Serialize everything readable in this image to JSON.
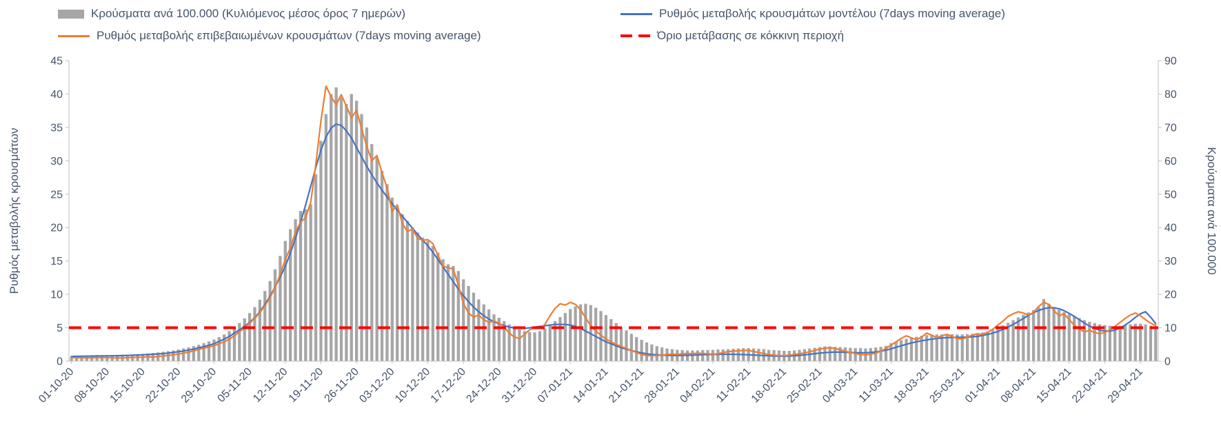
{
  "legend": {
    "items": [
      {
        "label": "Κρούσματα ανά 100.000 (Κυλιόμενος μέσος όρος 7 ημερών)",
        "type": "bar",
        "color": "#a6a6a6"
      },
      {
        "label": "Ρυθμός μεταβολής κρουσμάτων μοντέλου (7days moving average)",
        "type": "line",
        "color": "#4472c4"
      },
      {
        "label": "Ρυθμός μεταβολής επιβεβαιωμένων κρουσμάτων (7days moving average)",
        "type": "line",
        "color": "#ed7d31"
      },
      {
        "label": "Όριο μετάβασης σε κόκκινη περιοχή",
        "type": "dashed",
        "color": "#ff0000"
      }
    ]
  },
  "chart_data": {
    "type": "bar",
    "subtype": "combo-bar-line-daily",
    "grid": false,
    "legend_position": "top",
    "left_axis": {
      "title": "Ρυθμός μεταβολής κρουσμάτων",
      "min": 0,
      "max": 45,
      "ticks": [
        0,
        5,
        10,
        15,
        20,
        25,
        30,
        35,
        40,
        45
      ]
    },
    "right_axis": {
      "title": "Κρούσματα ανά 100.000",
      "min": 0,
      "max": 90,
      "ticks": [
        0,
        10,
        20,
        30,
        40,
        50,
        60,
        70,
        80,
        90
      ]
    },
    "threshold": {
      "value": 5,
      "axis": "left",
      "color": "#ff0000",
      "label": "Όριο μετάβασης σε κόκκινη περιοχή"
    },
    "x_tick_labels": [
      "01-10-20",
      "08-10-20",
      "15-10-20",
      "22-10-20",
      "29-10-20",
      "05-11-20",
      "12-11-20",
      "19-11-20",
      "26-11-20",
      "03-12-20",
      "10-12-20",
      "17-12-20",
      "24-12-20",
      "31-12-20",
      "07-01-21",
      "14-01-21",
      "21-01-21",
      "28-01-21",
      "04-02-21",
      "11-02-21",
      "18-02-21",
      "25-02-21",
      "04-03-21",
      "11-03-21",
      "18-03-21",
      "25-03-21",
      "01-04-21",
      "08-04-21",
      "15-04-21",
      "22-04-21",
      "29-04-21"
    ],
    "x_tick_step_days": 7,
    "series": [
      {
        "name": "Κρούσματα ανά 100.000 (Κυλιόμενος μέσος όρος 7 ημερών)",
        "type": "bar",
        "axis": "right",
        "color": "#a6a6a6",
        "values": [
          1.4,
          1.45,
          1.5,
          1.55,
          1.6,
          1.65,
          1.7,
          1.75,
          1.8,
          1.85,
          1.9,
          1.95,
          2.0,
          2.1,
          2.2,
          2.3,
          2.45,
          2.6,
          2.8,
          3.0,
          3.2,
          3.5,
          3.8,
          4.1,
          4.5,
          4.9,
          5.4,
          5.9,
          6.5,
          7.2,
          8.0,
          9.0,
          10.1,
          11.4,
          12.8,
          14.4,
          16.2,
          18.4,
          21.0,
          24.0,
          27.5,
          31.5,
          36.0,
          39.5,
          42.5,
          45.0,
          45.5,
          47.0,
          56.0,
          66.0,
          74.0,
          80.0,
          82.0,
          79.0,
          77.0,
          80.0,
          78.0,
          74.0,
          70.0,
          65.0,
          61.0,
          57.0,
          53.0,
          49.0,
          46.5,
          44.0,
          42.0,
          40.0,
          38.5,
          37.0,
          36.0,
          34.5,
          32.5,
          30.5,
          29.0,
          28.5,
          27.0,
          24.5,
          22.5,
          20.5,
          18.5,
          17.0,
          15.5,
          14.0,
          13.0,
          12.0,
          11.0,
          10.2,
          9.5,
          9.0,
          8.7,
          8.6,
          9.0,
          9.8,
          10.8,
          12.0,
          13.2,
          14.4,
          15.6,
          16.4,
          17.0,
          17.2,
          16.8,
          16.0,
          15.0,
          13.8,
          12.6,
          11.4,
          10.2,
          9.2,
          8.2,
          7.2,
          6.4,
          5.6,
          5.0,
          4.5,
          4.1,
          3.8,
          3.6,
          3.4,
          3.3,
          3.2,
          3.2,
          3.2,
          3.3,
          3.3,
          3.4,
          3.5,
          3.5,
          3.6,
          3.7,
          3.8,
          3.9,
          3.9,
          3.8,
          3.7,
          3.6,
          3.4,
          3.3,
          3.2,
          3.1,
          3.1,
          3.2,
          3.4,
          3.6,
          3.8,
          4.0,
          4.2,
          4.4,
          4.4,
          4.3,
          4.2,
          4.1,
          4.0,
          3.9,
          3.9,
          3.8,
          3.9,
          4.1,
          4.3,
          4.6,
          5.4,
          5.8,
          6.3,
          6.7,
          7.0,
          7.3,
          7.6,
          7.8,
          7.9,
          8.0,
          8.0,
          8.1,
          8.1,
          8.0,
          8.0,
          8.1,
          8.2,
          8.4,
          8.6,
          8.9,
          9.4,
          10.0,
          10.7,
          11.5,
          12.3,
          13.1,
          13.9,
          14.6,
          15.3,
          16.2,
          18.6,
          17.2,
          16.2,
          15.4,
          14.7,
          14.1,
          13.5,
          12.9,
          12.3,
          11.8,
          11.4,
          11.0,
          10.8,
          10.6,
          10.5,
          10.6,
          10.8,
          11.0,
          11.2,
          11.2,
          11.0,
          10.6,
          10.3
        ]
      },
      {
        "name": "Ρυθμός μεταβολής κρουσμάτων μοντέλου (7days moving average)",
        "type": "line",
        "axis": "left",
        "color": "#4472c4",
        "values": [
          0.7,
          0.72,
          0.74,
          0.75,
          0.76,
          0.78,
          0.79,
          0.8,
          0.81,
          0.82,
          0.84,
          0.86,
          0.89,
          0.92,
          0.95,
          0.99,
          1.03,
          1.08,
          1.14,
          1.21,
          1.3,
          1.4,
          1.52,
          1.66,
          1.82,
          2.0,
          2.18,
          2.38,
          2.6,
          2.95,
          3.3,
          3.7,
          4.2,
          4.7,
          5.2,
          5.8,
          6.5,
          7.4,
          8.5,
          9.7,
          11.1,
          12.6,
          14.2,
          16.2,
          18.4,
          20.8,
          23.4,
          26.2,
          29.0,
          31.6,
          33.6,
          34.9,
          35.5,
          35.3,
          34.5,
          33.4,
          32.0,
          30.6,
          29.2,
          27.9,
          26.7,
          25.6,
          24.6,
          23.6,
          22.6,
          21.7,
          20.8,
          19.9,
          19.0,
          18.1,
          17.3,
          16.3,
          15.2,
          14.1,
          13.0,
          11.9,
          10.8,
          9.8,
          8.9,
          8.1,
          7.4,
          6.8,
          6.3,
          5.9,
          5.6,
          5.3,
          5.1,
          5.0,
          4.9,
          4.9,
          5.0,
          5.1,
          5.2,
          5.3,
          5.4,
          5.5,
          5.5,
          5.5,
          5.4,
          5.2,
          4.9,
          4.5,
          4.1,
          3.7,
          3.3,
          2.9,
          2.6,
          2.3,
          2.0,
          1.8,
          1.6,
          1.4,
          1.25,
          1.1,
          1.0,
          0.95,
          0.9,
          0.88,
          0.86,
          0.85,
          0.86,
          0.88,
          0.9,
          0.93,
          0.96,
          0.98,
          1.0,
          1.02,
          1.03,
          1.03,
          1.02,
          1.0,
          0.98,
          0.95,
          0.92,
          0.88,
          0.84,
          0.8,
          0.77,
          0.75,
          0.74,
          0.76,
          0.8,
          0.86,
          0.94,
          1.03,
          1.12,
          1.2,
          1.27,
          1.32,
          1.35,
          1.35,
          1.33,
          1.3,
          1.27,
          1.25,
          1.26,
          1.3,
          1.38,
          1.5,
          1.65,
          1.85,
          2.08,
          2.3,
          2.52,
          2.72,
          2.9,
          3.05,
          3.18,
          3.3,
          3.4,
          3.47,
          3.52,
          3.55,
          3.57,
          3.58,
          3.6,
          3.65,
          3.72,
          3.85,
          4.0,
          4.2,
          4.45,
          4.75,
          5.1,
          5.5,
          5.95,
          6.4,
          6.85,
          7.25,
          7.6,
          7.85,
          8.0,
          8.0,
          7.85,
          7.55,
          7.15,
          6.7,
          6.2,
          5.7,
          5.25,
          4.9,
          4.65,
          4.5,
          4.5,
          4.65,
          4.95,
          5.4,
          5.95,
          6.55,
          7.1,
          7.4,
          6.6,
          5.6
        ]
      },
      {
        "name": "Ρυθμός μεταβολής επιβεβαιωμένων κρουσμάτων (7days moving average)",
        "type": "line",
        "axis": "left",
        "color": "#ed7d31",
        "values": [
          0.55,
          0.5,
          0.52,
          0.48,
          0.5,
          0.55,
          0.52,
          0.55,
          0.5,
          0.48,
          0.5,
          0.52,
          0.55,
          0.58,
          0.6,
          0.65,
          0.62,
          0.7,
          0.78,
          0.85,
          0.95,
          1.05,
          1.2,
          1.35,
          1.55,
          1.75,
          1.95,
          2.1,
          2.3,
          2.6,
          2.9,
          3.3,
          3.8,
          4.4,
          5.0,
          5.7,
          6.4,
          7.3,
          8.3,
          9.5,
          11.0,
          13.0,
          15.2,
          17.0,
          19.3,
          20.8,
          21.5,
          23.8,
          29.5,
          36.0,
          41.2,
          39.6,
          38.4,
          39.9,
          38.2,
          36.4,
          37.6,
          34.8,
          32.2,
          30.0,
          30.8,
          28.2,
          26.0,
          22.4,
          23.4,
          20.6,
          19.4,
          19.8,
          18.4,
          18.1,
          18.2,
          17.6,
          15.8,
          14.2,
          14.0,
          13.8,
          11.4,
          8.6,
          7.2,
          6.6,
          6.9,
          6.2,
          5.8,
          6.0,
          5.7,
          5.1,
          4.2,
          3.6,
          3.4,
          4.0,
          4.7,
          5.0,
          4.9,
          5.5,
          6.8,
          7.9,
          8.6,
          8.4,
          8.8,
          8.5,
          7.7,
          6.5,
          5.3,
          4.5,
          3.9,
          3.3,
          2.9,
          2.5,
          2.2,
          1.9,
          1.6,
          1.3,
          1.0,
          0.85,
          0.8,
          0.85,
          0.9,
          1.0,
          1.05,
          1.0,
          1.1,
          1.15,
          1.1,
          1.2,
          1.15,
          1.1,
          1.05,
          1.1,
          1.3,
          1.4,
          1.5,
          1.55,
          1.6,
          1.6,
          1.45,
          1.3,
          1.15,
          1.0,
          0.9,
          0.85,
          0.8,
          0.9,
          1.0,
          1.1,
          1.25,
          1.4,
          1.6,
          1.8,
          1.95,
          2.0,
          1.9,
          1.7,
          1.5,
          1.3,
          1.15,
          1.0,
          0.95,
          1.05,
          1.2,
          1.5,
          1.9,
          2.4,
          2.9,
          3.4,
          3.8,
          3.5,
          3.2,
          3.6,
          4.2,
          3.9,
          3.5,
          3.8,
          4.0,
          3.7,
          3.4,
          3.3,
          3.6,
          3.9,
          4.1,
          4.0,
          4.3,
          4.8,
          5.4,
          6.0,
          6.7,
          7.1,
          7.4,
          7.2,
          6.9,
          7.3,
          8.2,
          8.8,
          8.5,
          7.6,
          6.8,
          7.1,
          6.2,
          5.4,
          4.8,
          4.4,
          4.6,
          4.3,
          4.1,
          4.3,
          4.7,
          5.2,
          5.8,
          6.4,
          6.9,
          7.2,
          6.8,
          6.2,
          5.7,
          5.3
        ]
      }
    ]
  },
  "style": {
    "text_color": "#44546a",
    "axis_color": "#bfbfbf",
    "background": "#ffffff"
  }
}
